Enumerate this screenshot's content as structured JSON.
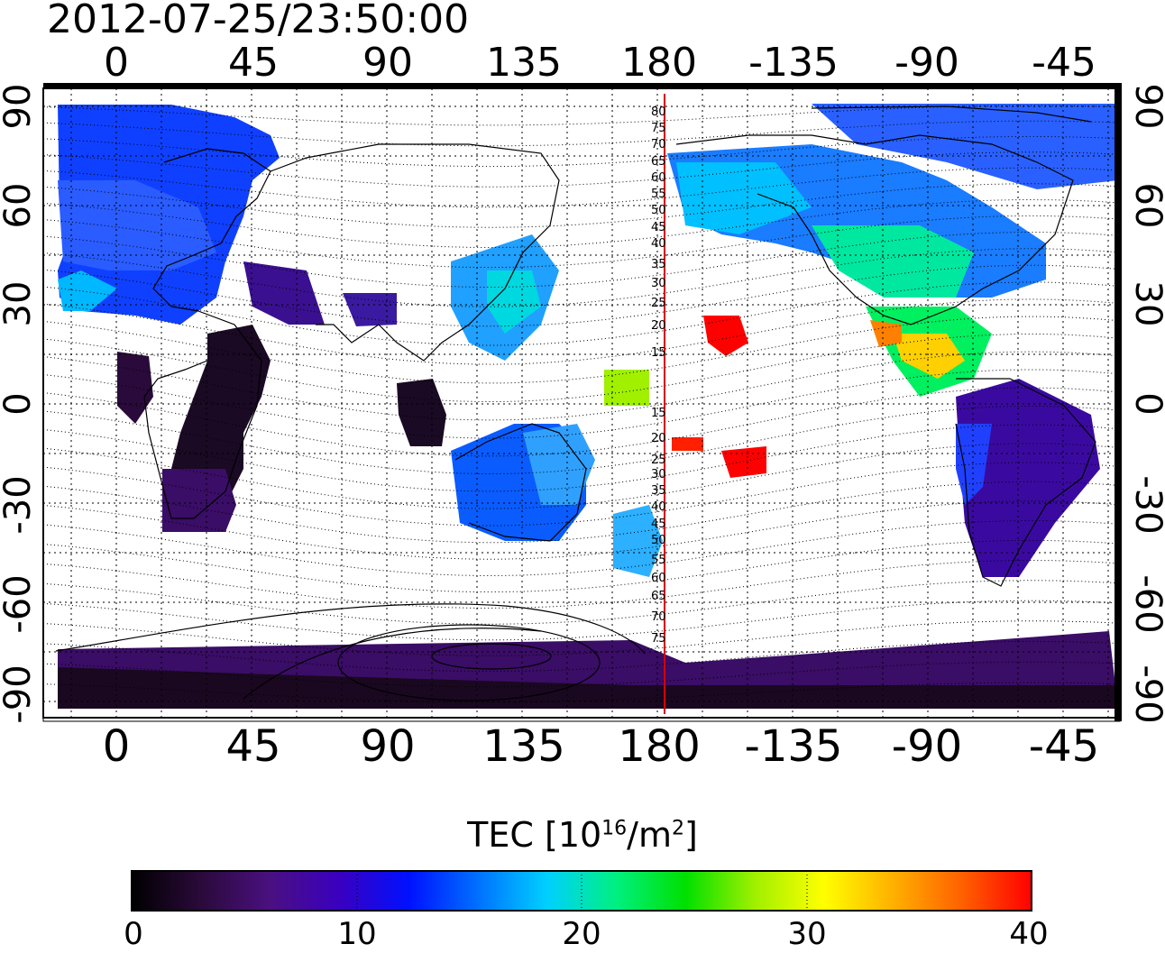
{
  "title": "2012-07-25/23:50:00",
  "map": {
    "top_lon_ticks": [
      "0",
      "45",
      "90",
      "135",
      "180",
      "-135",
      "-90",
      "-45"
    ],
    "bottom_lon_ticks": [
      "0",
      "45",
      "90",
      "135",
      "180",
      "-135",
      "-90",
      "-45"
    ],
    "left_lat_ticks": [
      "90",
      "60",
      "30",
      "0",
      "-30",
      "-60",
      "-90"
    ],
    "right_lat_ticks": [
      "90",
      "60",
      "30",
      "0",
      "-30",
      "-60",
      "-90"
    ],
    "meridian_line_labels": [
      "80",
      "75",
      "70",
      "65",
      "60",
      "55",
      "50",
      "45",
      "40",
      "35",
      "30",
      "25",
      "20",
      "15",
      "15",
      "20",
      "25",
      "30",
      "35",
      "40",
      "45",
      "50",
      "55",
      "60",
      "65",
      "70",
      "75"
    ],
    "meridian_color": "#d40000"
  },
  "colorbar": {
    "label_prefix": "TEC  [10",
    "label_sup1": "16",
    "label_mid": "/m",
    "label_sup2": "2",
    "label_suffix": "]",
    "ticks": [
      "0",
      "10",
      "20",
      "30",
      "40"
    ],
    "range": [
      0,
      40
    ],
    "colors": [
      "#000000",
      "#2a0a3a",
      "#4a1080",
      "#3a00c0",
      "#0010ff",
      "#0070ff",
      "#00d0ff",
      "#00f080",
      "#00e000",
      "#a0f000",
      "#ffff00",
      "#ffb000",
      "#ff6000",
      "#ff0000"
    ]
  }
}
